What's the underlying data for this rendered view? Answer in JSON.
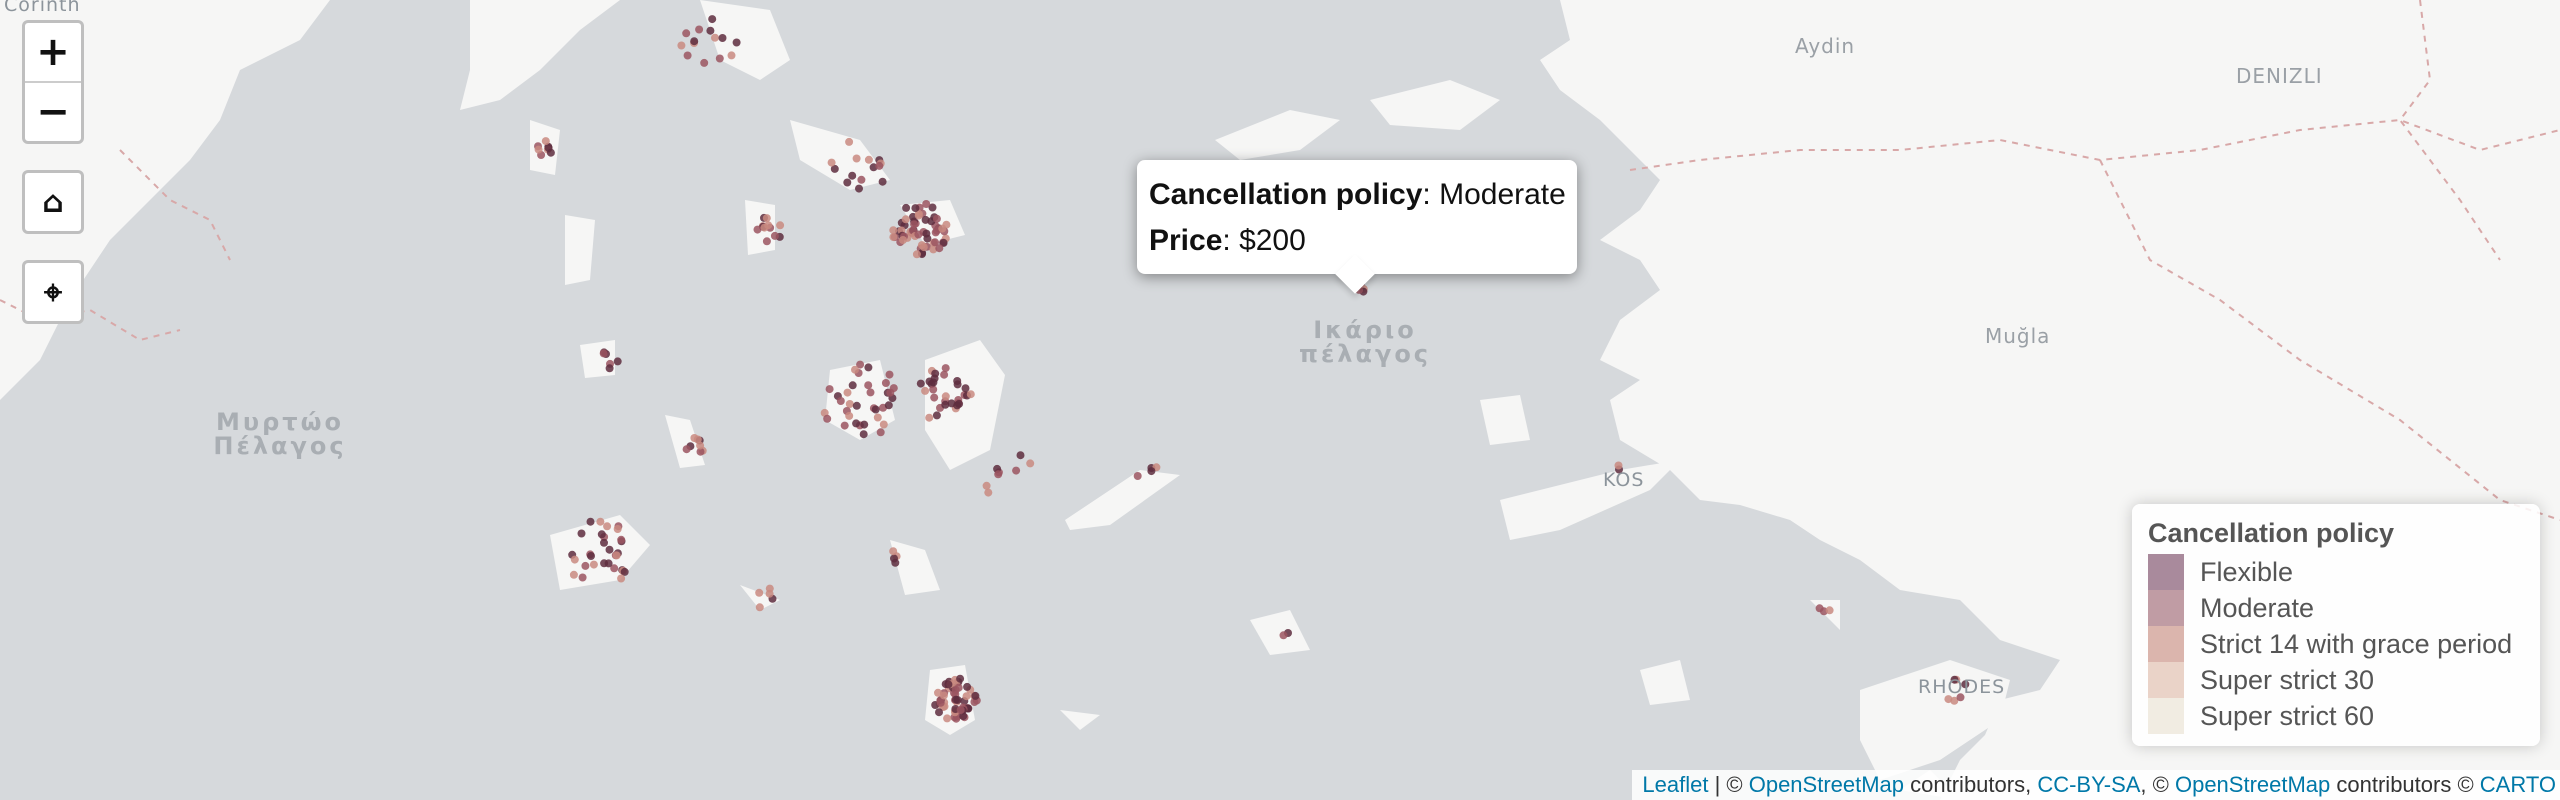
{
  "map": {
    "corner_label": "Corinth",
    "sea_labels": [
      {
        "line1": "Μυρτώο",
        "line2": "Πέλαγος"
      },
      {
        "line1": "Ικάριο",
        "line2": "πέλαγος"
      }
    ],
    "city_labels": [
      "Aydin",
      "DENIZLI",
      "Muğla",
      "KOS",
      "RHODES"
    ]
  },
  "controls": {
    "zoom_in": "+",
    "zoom_out": "−",
    "home_icon": "⌂",
    "locate_icon": "⌖"
  },
  "popup": {
    "policy_key": "Cancellation policy",
    "policy_value": "Moderate",
    "price_key": "Price",
    "price_value": "$200"
  },
  "legend": {
    "title": "Cancellation policy",
    "items": [
      {
        "label": "Flexible",
        "color": "#a98a9c"
      },
      {
        "label": "Moderate",
        "color": "#c09ca4"
      },
      {
        "label": "Strict 14 with grace period",
        "color": "#dbb5ad"
      },
      {
        "label": "Super strict 30",
        "color": "#ead3c8"
      },
      {
        "label": "Super strict 60",
        "color": "#f1ece2"
      }
    ]
  },
  "attribution": {
    "leaflet": "Leaflet",
    "sep1": " | © ",
    "osm1": "OpenStreetMap",
    "contrib1": " contributors, ",
    "ccbysa": "CC-BY-SA",
    "sep2": ", © ",
    "osm2": "OpenStreetMap",
    "contrib2": " contributors © ",
    "carto": "CARTO"
  },
  "colors": {
    "sea": "#d6d9dc",
    "land": "#f6f6f5",
    "dot_dark": "#5e2d3e",
    "dot_mid": "#9b5560",
    "dot_light": "#c98a80"
  }
}
